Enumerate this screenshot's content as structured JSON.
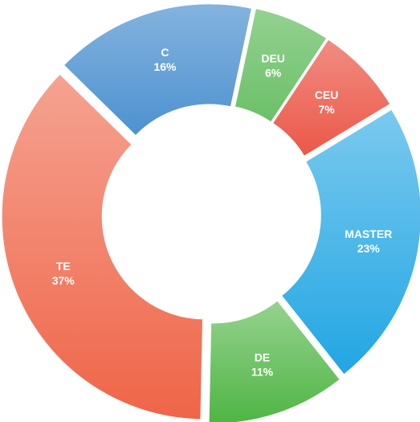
{
  "chart_data": {
    "type": "donut",
    "categories": [
      "C",
      "DEU",
      "CEU",
      "MASTER",
      "DE",
      "TE"
    ],
    "values": [
      16,
      6,
      7,
      23,
      11,
      37
    ],
    "value_labels": [
      "16%",
      "6%",
      "7%",
      "23%",
      "11%",
      "37%"
    ],
    "colors": [
      "#2f7fc8",
      "#4cb348",
      "#e8402e",
      "#22a6e3",
      "#4fb544",
      "#ef6548"
    ]
  }
}
